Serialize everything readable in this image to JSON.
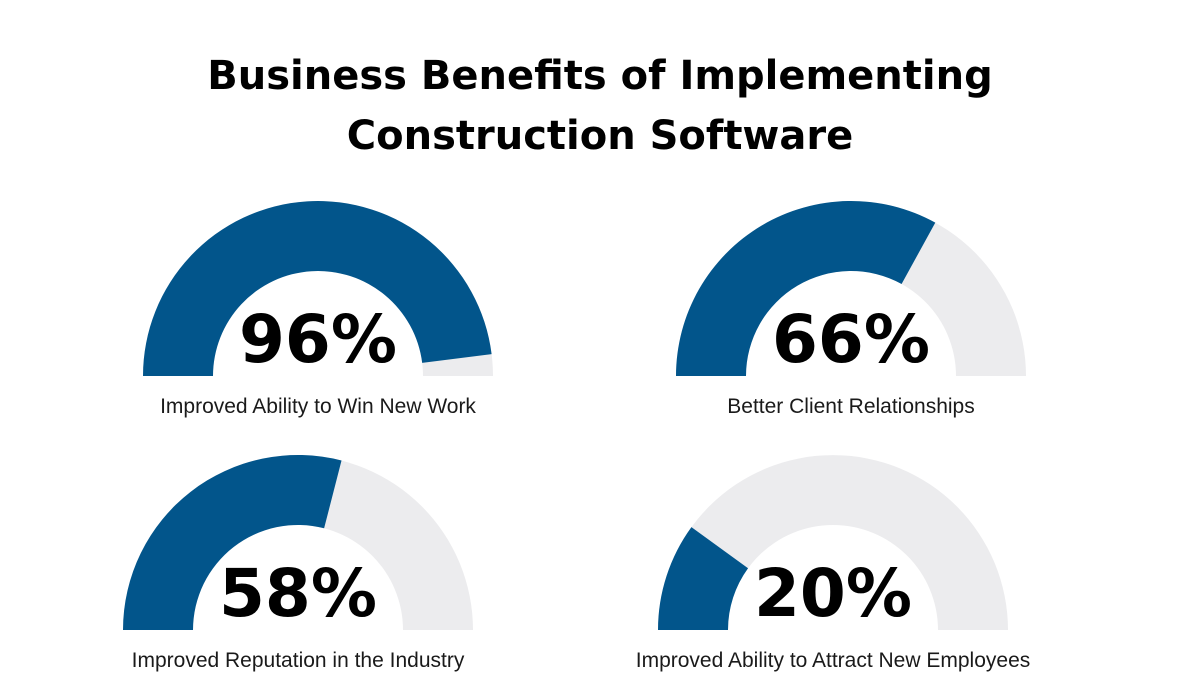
{
  "title_line1": "Business Benefits of Implementing",
  "title_line2": "Construction Software",
  "colors": {
    "filled": "#02558b",
    "track": "#ececee",
    "text": "#000000"
  },
  "chart_data": {
    "type": "gauge",
    "title": "Business Benefits of Implementing Construction Software",
    "unit": "%",
    "range": [
      0,
      100
    ],
    "items": [
      {
        "label": "Improved Ability to Win New Work",
        "value": 96,
        "display": "96%"
      },
      {
        "label": "Better Client Relationships",
        "value": 66,
        "display": "66%"
      },
      {
        "label": "Improved Reputation in the Industry",
        "value": 58,
        "display": "58%"
      },
      {
        "label": "Improved Ability to Attract New Employees",
        "value": 20,
        "display": "20%"
      }
    ]
  }
}
